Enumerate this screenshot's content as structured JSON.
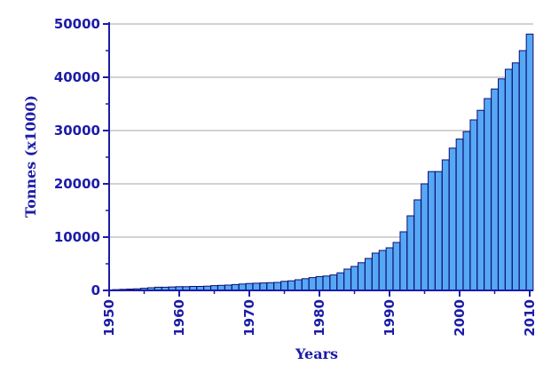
{
  "chart_data": {
    "type": "bar",
    "title": "",
    "xlabel": "Years",
    "ylabel": "Tonnes (x1000)",
    "ylim": [
      0,
      50000
    ],
    "yticks": [
      0,
      10000,
      20000,
      30000,
      40000,
      50000
    ],
    "ytick_labels": [
      "0",
      "10000",
      "20000",
      "30000",
      "40000",
      "50000"
    ],
    "xticks": [
      1950,
      1960,
      1970,
      1980,
      1990,
      2000,
      2010
    ],
    "xtick_labels": [
      "1950",
      "1960",
      "1970",
      "1980",
      "1990",
      "2000",
      "2010"
    ],
    "grid": "horizontal",
    "categories": [
      1950,
      1951,
      1952,
      1953,
      1954,
      1955,
      1956,
      1957,
      1958,
      1959,
      1960,
      1961,
      1962,
      1963,
      1964,
      1965,
      1966,
      1967,
      1968,
      1969,
      1970,
      1971,
      1972,
      1973,
      1974,
      1975,
      1976,
      1977,
      1978,
      1979,
      1980,
      1981,
      1982,
      1983,
      1984,
      1985,
      1986,
      1987,
      1988,
      1989,
      1990,
      1991,
      1992,
      1993,
      1994,
      1995,
      1996,
      1997,
      1998,
      1999,
      2000,
      2001,
      2002,
      2003,
      2004,
      2005,
      2006,
      2007,
      2008,
      2009,
      2010
    ],
    "values": [
      100,
      150,
      200,
      250,
      300,
      400,
      500,
      600,
      600,
      650,
      700,
      700,
      750,
      750,
      800,
      900,
      950,
      1000,
      1100,
      1200,
      1300,
      1350,
      1400,
      1450,
      1500,
      1700,
      1800,
      2000,
      2200,
      2400,
      2600,
      2700,
      2900,
      3300,
      4000,
      4500,
      5200,
      6000,
      7000,
      7500,
      8000,
      9000,
      11000,
      14000,
      17000,
      20000,
      22300,
      22300,
      24500,
      26700,
      28400,
      29800,
      32000,
      33800,
      36000,
      37800,
      39700,
      41500,
      42700,
      45000,
      48100
    ],
    "bar_color": "#56a8f5",
    "bar_edge_color": "#0c0c6e",
    "text_color": "#1c1ca8"
  }
}
